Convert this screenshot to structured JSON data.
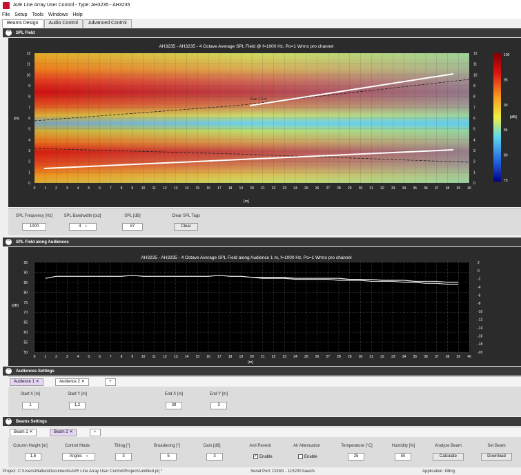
{
  "window": {
    "title": "AVE Line Array User Control  -  Type: AH3235 - AH3235"
  },
  "menu": [
    "File",
    "Setup",
    "Tools",
    "Windows",
    "Help"
  ],
  "tabs": [
    "Beams Design",
    "Audio Control",
    "Advanced Control"
  ],
  "spl_field": {
    "header": "SPL Field",
    "plot_title": "AH3235 - AH3235 - 4 Octave Average SPL Field @ f=1000 Hz, Po=1 Wrms pro channel",
    "y_unit": "[m]",
    "x_unit": "[m]",
    "colorbar_unit": "[dB]",
    "colorbar_ticks": [
      "100",
      "95",
      "90",
      "85",
      "80",
      "75"
    ],
    "y_ticks": [
      "12",
      "11",
      "10",
      "9",
      "8",
      "7",
      "6",
      "5",
      "4",
      "3",
      "2",
      "1",
      "0"
    ],
    "x_ticks": [
      "0",
      "1",
      "2",
      "3",
      "4",
      "5",
      "6",
      "7",
      "8",
      "9",
      "10",
      "11",
      "12",
      "13",
      "14",
      "15",
      "16",
      "17",
      "18",
      "19",
      "20",
      "21",
      "22",
      "23",
      "24",
      "25",
      "26",
      "27",
      "28",
      "29",
      "30",
      "31",
      "32",
      "33",
      "34",
      "35",
      "36",
      "37",
      "38",
      "39",
      "40"
    ],
    "beam_label": "Gain 1 6 m",
    "controls": {
      "freq_label": "SPL Frequency [Hz]",
      "freq_value": "1000",
      "bw_label": "SPL Bandwidth [oct]",
      "bw_value": "4",
      "spl_label": "SPL [dB]",
      "spl_value": "87",
      "clear_label": "Clear SPL Tags",
      "clear_button": "Clear"
    }
  },
  "audience_field": {
    "header": "SPL Field along Audiences",
    "plot_title": "AH3235 - AH3235 - 4 Octave Average SPL Field along Audience 1 m, f=1000 Hz, Po=1 Wrms pro channel",
    "y_unit": "[dB]",
    "x_unit": "[m]",
    "y_ticks_left": [
      "95",
      "90",
      "85",
      "80",
      "75",
      "70",
      "65",
      "60",
      "55",
      "50"
    ],
    "y_ticks_right": [
      "2",
      "0",
      "-2",
      "-4",
      "-6",
      "-8",
      "-10",
      "-12",
      "-14",
      "-16",
      "-18",
      "-20"
    ],
    "x_ticks": [
      "0",
      "1",
      "2",
      "3",
      "4",
      "5",
      "6",
      "7",
      "8",
      "9",
      "10",
      "11",
      "12",
      "13",
      "14",
      "15",
      "16",
      "17",
      "18",
      "19",
      "20",
      "21",
      "22",
      "23",
      "24",
      "25",
      "26",
      "27",
      "28",
      "29",
      "30",
      "31",
      "32",
      "33",
      "34",
      "35",
      "36",
      "37",
      "38",
      "39",
      "40"
    ]
  },
  "chart_data": {
    "type": "line",
    "title": "AH3235 - AH3235 - 4 Octave Average SPL Field along Audience 1 m, f=1000 Hz, Po=1 Wrms pro channel",
    "xlabel": "[m]",
    "ylabel": "[dB]",
    "ylim": [
      50,
      95
    ],
    "xlim": [
      0,
      40
    ],
    "grid": true,
    "series": [
      {
        "x": [
          1,
          2,
          3,
          4,
          5,
          6,
          7,
          8,
          9,
          10,
          11,
          12,
          13,
          14,
          15,
          16,
          17,
          18,
          19,
          20,
          21,
          22,
          23,
          24,
          25,
          26,
          27,
          28,
          29,
          30,
          31,
          32,
          33,
          34,
          35,
          36,
          37,
          38,
          39
        ],
        "values": [
          87,
          88,
          88,
          88,
          88,
          88,
          88,
          88,
          88.5,
          88,
          88,
          88,
          88,
          88,
          88,
          88,
          88.5,
          88,
          88,
          87.5,
          87.5,
          87.5,
          87.5,
          87,
          87,
          87,
          87,
          87,
          86.5,
          86.5,
          86.5,
          86,
          86,
          86,
          85.5,
          85.5,
          85.5,
          85,
          85
        ]
      },
      {
        "x": [
          20,
          21,
          22,
          23,
          24,
          25,
          26,
          27,
          28,
          29,
          30,
          31,
          32,
          33,
          34,
          35,
          36,
          37,
          38,
          39
        ],
        "values": [
          87.5,
          87,
          87,
          87,
          86.5,
          86.5,
          86.5,
          86.5,
          86,
          86,
          86,
          85.5,
          85.5,
          85.5,
          85,
          85,
          84.5,
          84.5,
          84,
          84
        ]
      }
    ]
  },
  "audiences": {
    "header": "Audiences Settings",
    "tabs": [
      "Audience 1",
      "Audience 2",
      "+"
    ],
    "start_x_label": "Start X [m]",
    "start_x_value": "1",
    "start_y_label": "Start Y [m]",
    "start_y_value": "1,2",
    "end_x_label": "End X [m]",
    "end_x_value": "39",
    "end_y_label": "End Y [m]",
    "end_y_value": "3"
  },
  "beams": {
    "header": "Beams Settings",
    "tabs": [
      "Beam 1",
      "Beam 2",
      "+"
    ],
    "fields": [
      {
        "label": "Column Height [m]",
        "value": "1,6"
      },
      {
        "label": "Control Mode",
        "value": "Angles"
      },
      {
        "label": "Tilting [°]",
        "value": "3"
      },
      {
        "label": "Broadening [°]",
        "value": "5"
      },
      {
        "label": "Gain [dB]",
        "value": "3"
      },
      {
        "label": "Anti Reverb",
        "value": "Enable"
      },
      {
        "label": "Air Attenuation",
        "value": "Enable"
      },
      {
        "label": "Temperature [°C]",
        "value": "25"
      },
      {
        "label": "Humidity [%]",
        "value": "50"
      },
      {
        "label": "Analyze Beam",
        "value": "Calculate"
      },
      {
        "label": "Set Beam",
        "value": "Download"
      }
    ]
  },
  "status": {
    "project": "Project:  C:\\Users\\Matteo\\Documents\\AVE Line Array User Control\\Projects\\untitled.prj *",
    "serial": "Serial Port:  COM1  -  115200  baud/s",
    "app": "Application:  Idling"
  },
  "colors": {
    "header": "#3a3a3a",
    "plot_bg": "#000000",
    "panel_bg": "#2b2b2b",
    "accent_tab": "#e6d5f4"
  }
}
